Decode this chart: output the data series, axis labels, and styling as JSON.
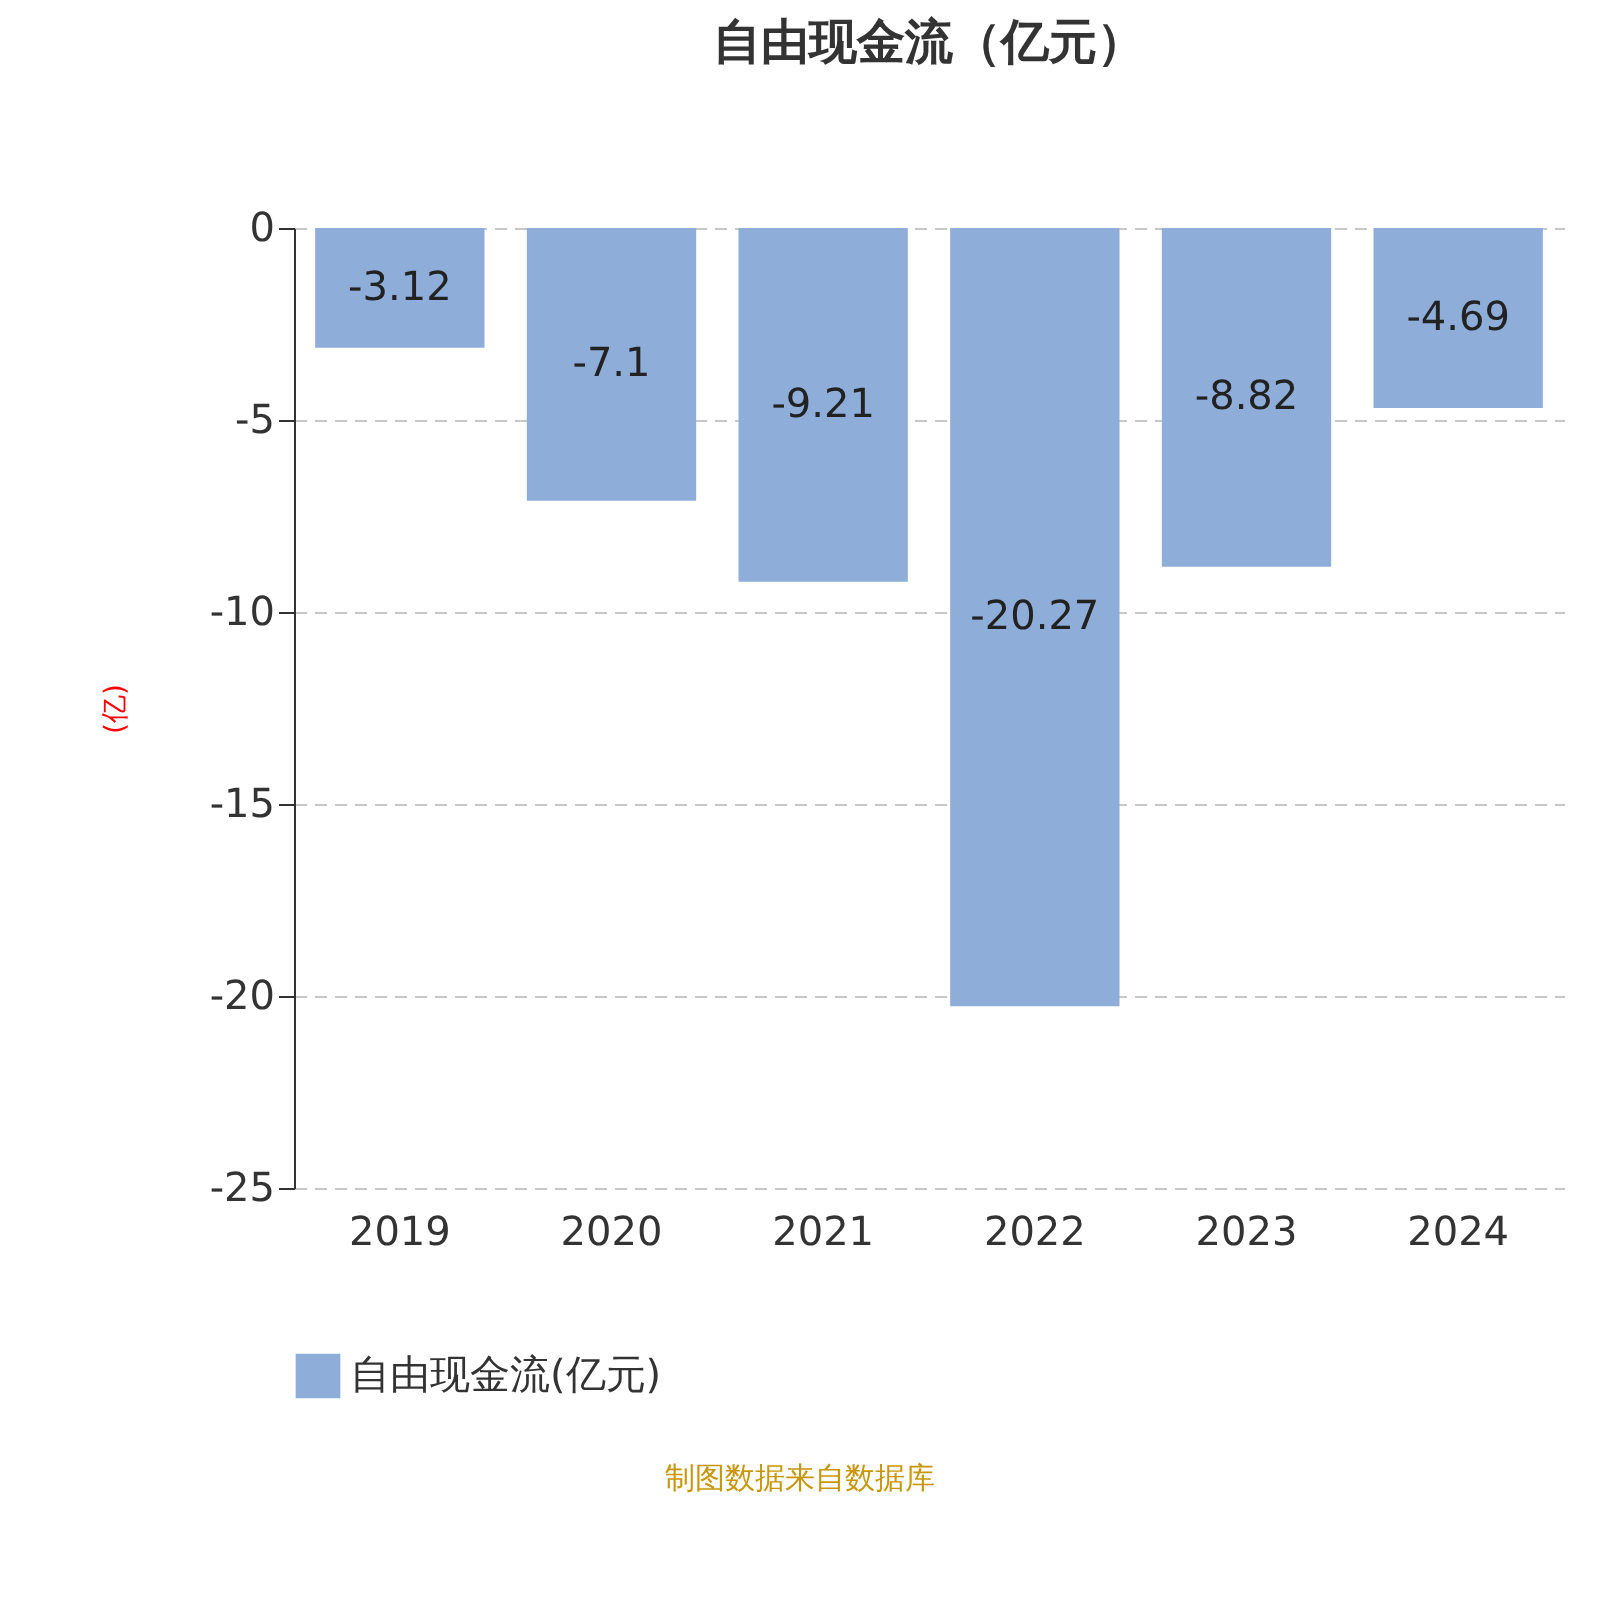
{
  "chart_data": {
    "type": "bar",
    "title": "自由现金流（亿元）",
    "ylabel": "(亿)",
    "categories": [
      "2019",
      "2020",
      "2021",
      "2022",
      "2023",
      "2024"
    ],
    "series": [
      {
        "name": "自由现金流(亿元)",
        "color": "#8eadd9",
        "values": [
          -3.12,
          -7.1,
          -9.21,
          -20.27,
          -8.82,
          -4.69
        ]
      }
    ],
    "ylim": [
      -25,
      0
    ],
    "yticks": [
      -25,
      -20,
      -15,
      -10,
      -5,
      0
    ],
    "grid": "y",
    "legend": "bottom",
    "data_labels": true,
    "annotations": [
      "制图数据来自数据库"
    ]
  }
}
